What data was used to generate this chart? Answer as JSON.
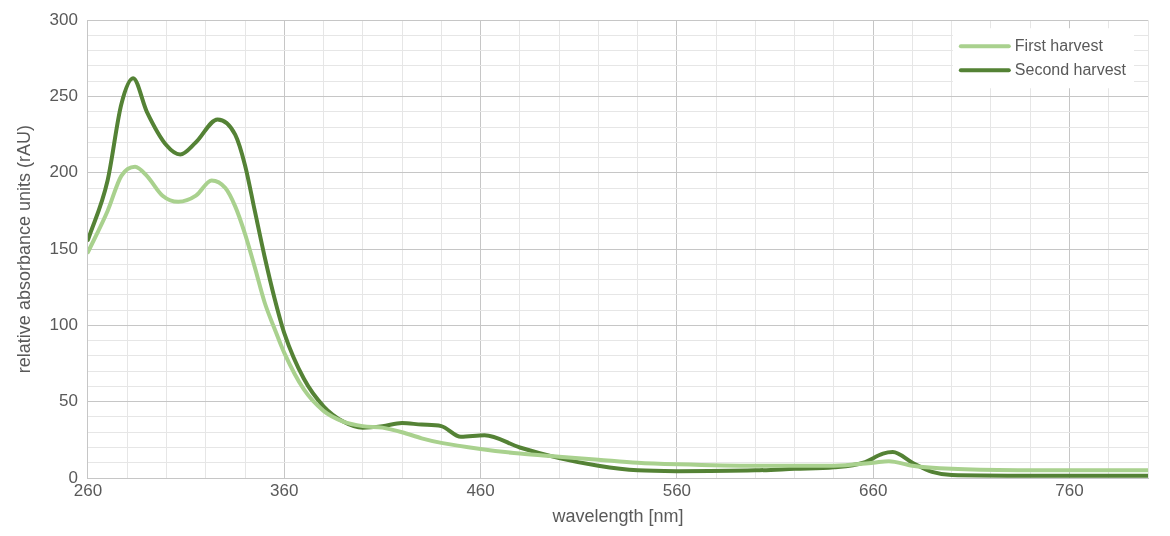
{
  "chart_data": {
    "type": "line",
    "xlabel": "wavelength [nm]",
    "ylabel": "relative absorbance units (rAU)",
    "xlim": [
      260,
      800
    ],
    "xticks": [
      260,
      {
        "value": 280,
        "label": null
      },
      {
        "value": 300,
        "label": null
      },
      {
        "value": 320,
        "label": null
      },
      {
        "value": 340,
        "label": null
      },
      360,
      {
        "value": 380,
        "label": null
      },
      {
        "value": 400,
        "label": null
      },
      {
        "value": 420,
        "label": null
      },
      {
        "value": 440,
        "label": null
      },
      460,
      {
        "value": 480,
        "label": null
      },
      {
        "value": 500,
        "label": null
      },
      {
        "value": 520,
        "label": null
      },
      {
        "value": 540,
        "label": null
      },
      560,
      {
        "value": 580,
        "label": null
      },
      {
        "value": 600,
        "label": null
      },
      {
        "value": 620,
        "label": null
      },
      {
        "value": 640,
        "label": null
      },
      660,
      {
        "value": 680,
        "label": null
      },
      {
        "value": 700,
        "label": null
      },
      {
        "value": 720,
        "label": null
      },
      {
        "value": 740,
        "label": null
      },
      760,
      {
        "value": 780,
        "label": null
      },
      {
        "value": 800,
        "label": null
      }
    ],
    "ylim": [
      0,
      300
    ],
    "yticks": [
      0,
      {
        "value": 10,
        "label": null
      },
      {
        "value": 20,
        "label": null
      },
      {
        "value": 30,
        "label": null
      },
      {
        "value": 40,
        "label": null
      },
      50,
      {
        "value": 60,
        "label": null
      },
      {
        "value": 70,
        "label": null
      },
      {
        "value": 80,
        "label": null
      },
      {
        "value": 90,
        "label": null
      },
      100,
      {
        "value": 110,
        "label": null
      },
      {
        "value": 120,
        "label": null
      },
      {
        "value": 130,
        "label": null
      },
      {
        "value": 140,
        "label": null
      },
      150,
      {
        "value": 160,
        "label": null
      },
      {
        "value": 170,
        "label": null
      },
      {
        "value": 180,
        "label": null
      },
      {
        "value": 190,
        "label": null
      },
      200,
      {
        "value": 210,
        "label": null
      },
      {
        "value": 220,
        "label": null
      },
      {
        "value": 230,
        "label": null
      },
      {
        "value": 240,
        "label": null
      },
      250,
      {
        "value": 260,
        "label": null
      },
      {
        "value": 270,
        "label": null
      },
      {
        "value": 280,
        "label": null
      },
      {
        "value": 290,
        "label": null
      },
      300
    ],
    "grid": true,
    "legend": "top right",
    "marker": "none",
    "line_style": "solid",
    "series": [
      {
        "name": "First harvest",
        "color": "#a9d18e",
        "x": [
          260,
          270,
          277,
          284,
          290,
          298,
          306,
          315,
          323,
          330,
          335,
          340,
          345,
          350,
          355,
          360,
          370,
          380,
          390,
          400,
          410,
          420,
          430,
          440,
          460,
          480,
          500,
          520,
          540,
          560,
          600,
          640,
          660,
          668,
          680,
          700,
          750,
          800
        ],
        "values": [
          148,
          175,
          198,
          204,
          198,
          185,
          181,
          185,
          195,
          190,
          178,
          160,
          138,
          115,
          98,
          82,
          58,
          44,
          37,
          34,
          33,
          30,
          26,
          23,
          19,
          16,
          14,
          12,
          10,
          9,
          8,
          8,
          10,
          11,
          8,
          6,
          5,
          5
        ]
      },
      {
        "name": "Second harvest",
        "color": "#548235",
        "x": [
          260,
          270,
          277,
          283,
          290,
          300,
          307,
          315,
          326,
          335,
          340,
          345,
          350,
          355,
          360,
          370,
          380,
          390,
          400,
          410,
          420,
          430,
          440,
          450,
          462,
          480,
          500,
          520,
          540,
          560,
          600,
          620,
          640,
          655,
          665,
          670,
          680,
          690,
          700,
          750,
          800
        ],
        "values": [
          156,
          195,
          245,
          262,
          240,
          218,
          212,
          220,
          235,
          225,
          205,
          175,
          145,
          118,
          95,
          65,
          47,
          37,
          33,
          34,
          36,
          35,
          34,
          27,
          28,
          20,
          13,
          8,
          5,
          4.5,
          5,
          6,
          7,
          10,
          16,
          17,
          10,
          4,
          2,
          1.5,
          1.5
        ]
      }
    ]
  }
}
